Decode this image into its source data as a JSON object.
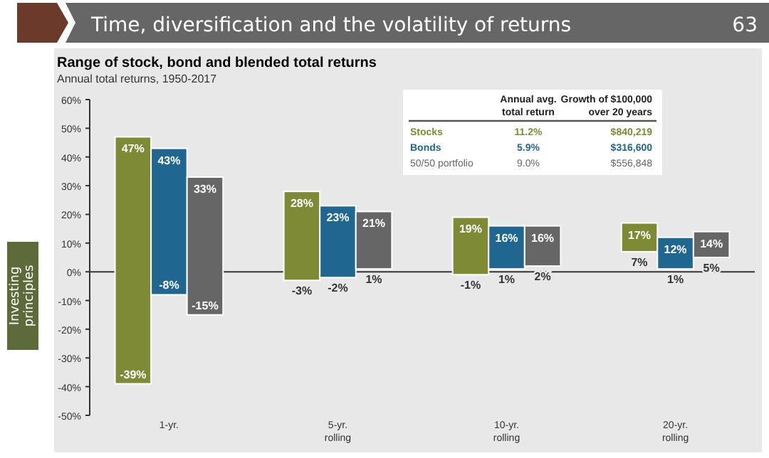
{
  "chart_data": {
    "type": "bar",
    "title": "Range of stock, bond and blended total returns",
    "subtitle": "Annual total returns, 1950-2017",
    "categories": [
      "1-yr.",
      "5-yr. rolling",
      "10-yr. rolling",
      "20-yr. rolling"
    ],
    "series": [
      {
        "name": "Stocks",
        "color": "#7f8a35",
        "base": [
          -39,
          -3,
          -1,
          7
        ],
        "values": [
          86,
          31,
          20,
          10
        ],
        "value_labels": [
          "47%",
          "28%",
          "19%",
          "17%"
        ]
      },
      {
        "name": "Bonds",
        "color": "#1f6690",
        "base": [
          -8,
          -2,
          1,
          1
        ],
        "values": [
          51,
          25,
          15,
          11
        ],
        "value_labels": [
          "43%",
          "23%",
          "16%",
          "12%"
        ]
      },
      {
        "name": "50/50 portfolio",
        "color": "#666666",
        "base": [
          -15,
          1,
          2,
          5
        ],
        "values": [
          48,
          20,
          14,
          9
        ],
        "value_labels": [
          "33%",
          "21%",
          "16%",
          "14%"
        ]
      }
    ],
    "ylim": [
      -50,
      60
    ],
    "yticks": [
      {
        "value": -50,
        "label": "-50%"
      },
      {
        "value": -40,
        "label": "-40%"
      },
      {
        "value": -30,
        "label": "-30%"
      },
      {
        "value": -20,
        "label": "-20%"
      },
      {
        "value": -10,
        "label": "-10%"
      },
      {
        "value": 0,
        "label": "0%"
      },
      {
        "value": 10,
        "label": "10%"
      },
      {
        "value": 20,
        "label": "20%"
      },
      {
        "value": 30,
        "label": "30%"
      },
      {
        "value": 40,
        "label": "40%"
      },
      {
        "value": 50,
        "label": "50%"
      },
      {
        "value": 60,
        "label": "60%"
      }
    ],
    "legend": "top right",
    "annotations": [
      "Time, diversification and the volatility of returns",
      "63",
      "Investing principles",
      "Annual avg. total return",
      "Growth of $100,000 over 20 years",
      "11.2%",
      "$840,219",
      "5.9%",
      "$316,600",
      "9.0%",
      "$556,848",
      "-39%",
      "-8%",
      "-15%",
      "-3%",
      "-2%",
      "1%",
      "-1%",
      "1%",
      "2%",
      "7%",
      "1%",
      "5%"
    ]
  }
}
